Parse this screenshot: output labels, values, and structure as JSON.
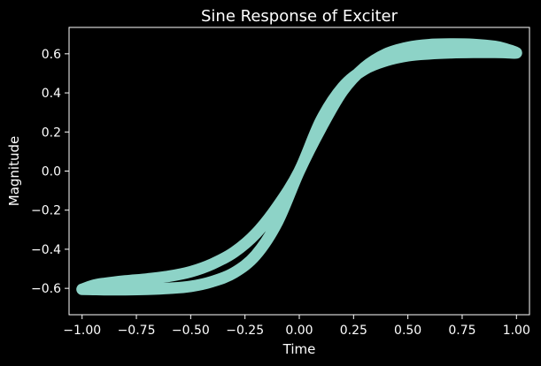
{
  "chart_data": {
    "type": "line",
    "title": "Sine Response of Exciter",
    "xlabel": "Time",
    "ylabel": "Magnitude",
    "xlim": [
      -1.06,
      1.06
    ],
    "ylim": [
      -0.735,
      0.735
    ],
    "xticks": [
      -1.0,
      -0.75,
      -0.5,
      -0.25,
      0.0,
      0.25,
      0.5,
      0.75,
      1.0
    ],
    "xtick_labels": [
      "−1.00",
      "−0.75",
      "−0.50",
      "−0.25",
      "0.00",
      "0.25",
      "0.50",
      "0.75",
      "1.00"
    ],
    "yticks": [
      -0.6,
      -0.4,
      -0.2,
      0.0,
      0.2,
      0.4,
      0.6
    ],
    "ytick_labels": [
      "−0.6",
      "−0.4",
      "−0.2",
      "0.0",
      "0.2",
      "0.4",
      "0.6"
    ],
    "grid": false,
    "legend": "none",
    "series": [
      {
        "color": "#8dd3c7",
        "x": [
          -1.0,
          -0.95,
          -0.9,
          -0.8,
          -0.7,
          -0.6,
          -0.5,
          -0.4,
          -0.3,
          -0.2,
          -0.1,
          0.0,
          0.1,
          0.2,
          0.3,
          0.4,
          0.5,
          0.6,
          0.7,
          0.8,
          0.9,
          0.95,
          1.0,
          0.95,
          0.9,
          0.8,
          0.7,
          0.6,
          0.5,
          0.4,
          0.3,
          0.2,
          0.1,
          0.0,
          -0.1,
          -0.2,
          -0.3,
          -0.4,
          -0.5,
          -0.6,
          -0.7,
          -0.8,
          -0.9,
          -0.95,
          -1.0
        ],
        "y": [
          -0.605,
          -0.585,
          -0.575,
          -0.562,
          -0.552,
          -0.538,
          -0.515,
          -0.475,
          -0.415,
          -0.32,
          -0.18,
          0.0,
          0.26,
          0.43,
          0.52,
          0.565,
          0.59,
          0.6,
          0.605,
          0.607,
          0.607,
          0.606,
          0.605,
          0.625,
          0.638,
          0.648,
          0.65,
          0.647,
          0.633,
          0.6,
          0.53,
          0.41,
          0.22,
          0.0,
          -0.26,
          -0.43,
          -0.52,
          -0.565,
          -0.59,
          -0.6,
          -0.605,
          -0.607,
          -0.607,
          -0.606,
          -0.605
        ]
      }
    ]
  }
}
